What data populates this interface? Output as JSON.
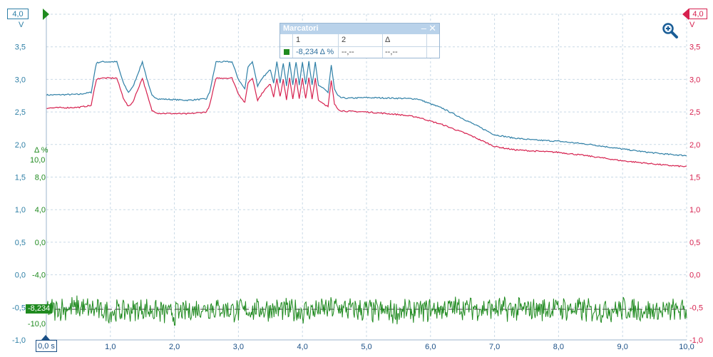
{
  "colors": {
    "channel_a": "#2e7fa6",
    "channel_b": "#d6214f",
    "math_channel": "#1f8a1f",
    "grid": "#c9d9e6",
    "marker_header": "#b9d2ea"
  },
  "channel_a_scale": {
    "range_label": "4,0",
    "unit": "V"
  },
  "channel_b_scale": {
    "range_label": "4,0",
    "unit": "V"
  },
  "math_scale": {
    "unit": "Δ %",
    "top_label": "10,0"
  },
  "time_origin_label": "0,0 s",
  "math_marker_value": "-8,234",
  "marker_panel": {
    "title": "Marcatori",
    "minimize_icon": "minimize-icon",
    "close_icon": "close-icon",
    "col_1": "1",
    "col_2": "2",
    "col_delta": "Δ",
    "row_swatch_color": "#1f8a1f",
    "row_value_1": "-8,234 Δ %",
    "row_value_2": "--,--",
    "row_value_delta": "--,--"
  },
  "zoom_icon": "magnifier-zoom-icon",
  "chart_data": {
    "type": "line",
    "x_ticks": [
      "1,0",
      "2,0",
      "3,0",
      "4,0",
      "5,0",
      "6,0",
      "7,0",
      "8,0",
      "9,0",
      "10,0"
    ],
    "xlim": [
      0,
      10
    ],
    "y_left_ticks": [
      "3,5",
      "3,0",
      "2,5",
      "2,0",
      "1,5",
      "1,0",
      "0,5",
      "0,0",
      "-0,5",
      "-1,0"
    ],
    "y_right_ticks": [
      "3,5",
      "3,0",
      "2,5",
      "2,0",
      "1,5",
      "1,0",
      "0,5",
      "0,0",
      "-0,5",
      "-1,0"
    ],
    "ylim": [
      -1.0,
      4.0
    ],
    "math_ticks": [
      "8,0",
      "4,0",
      "0,0",
      "-4,0",
      "-10,0"
    ],
    "grid": true,
    "series": [
      {
        "channel": "A",
        "x": [
          0,
          0.5,
          0.7,
          0.78,
          0.85,
          1.1,
          1.2,
          1.28,
          1.35,
          1.5,
          1.6,
          1.65,
          1.75,
          2.2,
          2.5,
          2.55,
          2.65,
          2.9,
          3.0,
          3.1,
          3.15,
          3.22,
          3.3,
          3.4,
          3.5,
          3.55,
          3.6,
          3.65,
          3.7,
          3.75,
          3.8,
          3.85,
          3.9,
          3.95,
          4.0,
          4.05,
          4.1,
          4.15,
          4.2,
          4.25,
          4.3,
          4.4,
          4.45,
          4.5,
          4.55,
          4.6,
          4.7,
          5.0,
          5.5,
          5.8,
          6.2,
          6.6,
          7.0,
          7.3,
          7.6,
          8.0,
          8.5,
          9.0,
          9.4,
          9.7,
          10.0
        ],
        "values": [
          2.76,
          2.77,
          2.8,
          3.25,
          3.27,
          3.27,
          2.95,
          2.8,
          2.88,
          3.27,
          2.9,
          2.75,
          2.7,
          2.68,
          2.7,
          2.8,
          3.27,
          3.27,
          3.0,
          2.85,
          3.2,
          3.27,
          2.9,
          3.05,
          3.15,
          2.95,
          3.27,
          2.95,
          3.25,
          2.9,
          3.27,
          2.92,
          3.27,
          2.92,
          3.27,
          2.92,
          3.27,
          2.92,
          3.27,
          2.9,
          2.88,
          2.8,
          3.22,
          2.85,
          2.75,
          2.72,
          2.71,
          2.72,
          2.71,
          2.7,
          2.55,
          2.35,
          2.15,
          2.1,
          2.07,
          2.05,
          2.0,
          1.93,
          1.88,
          1.85,
          1.83
        ]
      },
      {
        "channel": "B",
        "x": [
          0,
          0.5,
          0.7,
          0.78,
          0.85,
          1.1,
          1.2,
          1.28,
          1.35,
          1.5,
          1.6,
          1.65,
          1.75,
          2.2,
          2.5,
          2.55,
          2.65,
          2.9,
          3.0,
          3.1,
          3.15,
          3.22,
          3.3,
          3.4,
          3.5,
          3.55,
          3.6,
          3.65,
          3.7,
          3.75,
          3.8,
          3.85,
          3.9,
          3.95,
          4.0,
          4.05,
          4.1,
          4.15,
          4.2,
          4.25,
          4.3,
          4.4,
          4.45,
          4.5,
          4.55,
          4.6,
          4.7,
          5.0,
          5.5,
          5.8,
          6.2,
          6.6,
          7.0,
          7.3,
          7.6,
          8.0,
          8.5,
          9.0,
          9.4,
          9.7,
          10.0
        ],
        "values": [
          2.56,
          2.57,
          2.6,
          3.0,
          3.02,
          3.02,
          2.72,
          2.58,
          2.65,
          3.02,
          2.68,
          2.52,
          2.48,
          2.47,
          2.5,
          2.6,
          3.02,
          3.02,
          2.78,
          2.64,
          2.95,
          3.02,
          2.68,
          2.83,
          2.93,
          2.73,
          3.02,
          2.73,
          3.0,
          2.68,
          3.02,
          2.7,
          3.02,
          2.7,
          3.02,
          2.7,
          3.02,
          2.7,
          3.02,
          2.68,
          2.65,
          2.58,
          2.98,
          2.62,
          2.55,
          2.52,
          2.51,
          2.5,
          2.46,
          2.42,
          2.3,
          2.15,
          1.97,
          1.92,
          1.9,
          1.88,
          1.82,
          1.75,
          1.71,
          1.68,
          1.66
        ]
      },
      {
        "channel": "Math",
        "x": [
          0,
          0.5,
          1.0,
          1.5,
          2.0,
          2.5,
          3.0,
          3.5,
          4.0,
          4.5,
          5.0,
          5.5,
          6.0,
          6.5,
          7.0,
          7.5,
          8.0,
          8.5,
          9.0,
          9.5,
          10.0
        ],
        "values": [
          -8.3,
          -8.0,
          -8.6,
          -8.2,
          -8.8,
          -8.0,
          -8.4,
          -8.2,
          -8.5,
          -8.1,
          -8.4,
          -8.6,
          -8.3,
          -8.0,
          -8.2,
          -8.3,
          -8.1,
          -8.4,
          -8.2,
          -8.5,
          -8.3
        ]
      }
    ]
  }
}
